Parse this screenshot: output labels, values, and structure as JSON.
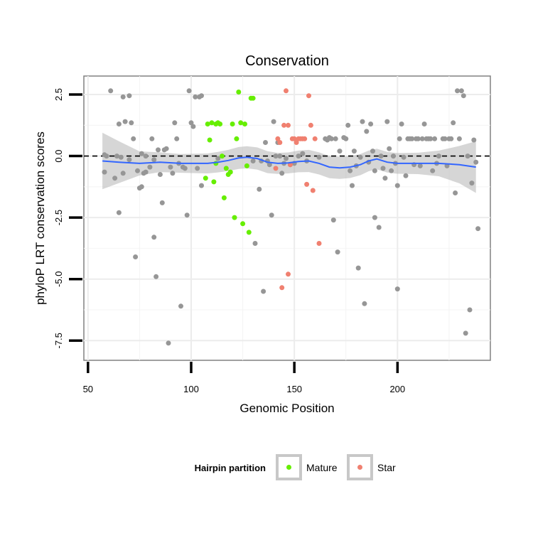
{
  "chart_data": {
    "type": "scatter",
    "title": "Conservation",
    "xlabel": "Genomic Position",
    "ylabel": "phyloP LRT conservation scores",
    "xlim": [
      48,
      245
    ],
    "ylim": [
      -8.3,
      3.25
    ],
    "x_ticks": [
      50,
      100,
      150,
      200
    ],
    "y_ticks": [
      2.5,
      0.0,
      -2.5,
      -5.0,
      -7.5
    ],
    "x_tick_labels": [
      "50",
      "100",
      "150",
      "200"
    ],
    "y_tick_labels": [
      "2.5",
      "0.0",
      "-2.5",
      "-5.0",
      "-7.5"
    ],
    "grid": true,
    "reference_line": {
      "y": 0,
      "style": "dashed",
      "color": "#000000"
    },
    "legend": {
      "title": "Hairpin partition",
      "placement": "bottom",
      "entries": [
        {
          "label": "Mature",
          "color": "#66ee00"
        },
        {
          "label": "Star",
          "color": "#f08070"
        }
      ]
    },
    "colors": {
      "other": "#969696",
      "mature": "#66ee00",
      "star": "#f08070",
      "smooth": "#3366ff",
      "band": "#b4b4b4"
    },
    "series": [
      {
        "name": "Other",
        "points": [
          [
            58,
            0.05
          ],
          [
            59,
            0.0
          ],
          [
            58,
            -0.65
          ],
          [
            61,
            2.65
          ],
          [
            63,
            -0.9
          ],
          [
            64,
            0.0
          ],
          [
            65,
            1.3
          ],
          [
            65,
            -2.3
          ],
          [
            66,
            -0.05
          ],
          [
            67,
            2.4
          ],
          [
            67,
            -0.7
          ],
          [
            68,
            1.4
          ],
          [
            70,
            2.45
          ],
          [
            70,
            -0.15
          ],
          [
            71,
            1.35
          ],
          [
            72,
            0.7
          ],
          [
            73,
            -4.1
          ],
          [
            74,
            -0.6
          ],
          [
            75,
            -1.3
          ],
          [
            76,
            -1.25
          ],
          [
            76,
            0.1
          ],
          [
            77,
            -0.7
          ],
          [
            78,
            -0.65
          ],
          [
            78,
            0.0
          ],
          [
            80,
            -0.45
          ],
          [
            81,
            0.7
          ],
          [
            82,
            -0.15
          ],
          [
            82,
            -3.3
          ],
          [
            83,
            -4.9
          ],
          [
            84,
            0.25
          ],
          [
            85,
            -0.75
          ],
          [
            86,
            -1.9
          ],
          [
            87,
            0.25
          ],
          [
            88,
            0.3
          ],
          [
            89,
            -7.6
          ],
          [
            90,
            -0.45
          ],
          [
            91,
            -0.7
          ],
          [
            92,
            1.35
          ],
          [
            93,
            0.7
          ],
          [
            94,
            -0.3
          ],
          [
            95,
            -6.1
          ],
          [
            96,
            -0.45
          ],
          [
            97,
            -0.5
          ],
          [
            98,
            -2.4
          ],
          [
            99,
            2.65
          ],
          [
            100,
            1.35
          ],
          [
            101,
            1.2
          ],
          [
            102,
            2.4
          ],
          [
            103,
            -0.5
          ],
          [
            104,
            2.4
          ],
          [
            105,
            2.45
          ],
          [
            105,
            -1.2
          ],
          [
            113,
            -0.1
          ],
          [
            130,
            -0.2
          ],
          [
            131,
            -3.55
          ],
          [
            133,
            -1.35
          ],
          [
            134,
            -0.2
          ],
          [
            135,
            -5.5
          ],
          [
            136,
            0.55
          ],
          [
            137,
            -0.2
          ],
          [
            138,
            -0.35
          ],
          [
            139,
            -2.4
          ],
          [
            140,
            1.4
          ],
          [
            141,
            0.0
          ],
          [
            142,
            0.55
          ],
          [
            143,
            0.0
          ],
          [
            144,
            -0.7
          ],
          [
            145,
            -0.3
          ],
          [
            146,
            -0.1
          ],
          [
            148,
            -0.35
          ],
          [
            150,
            -0.3
          ],
          [
            152,
            0.0
          ],
          [
            154,
            0.1
          ],
          [
            156,
            -0.2
          ],
          [
            162,
            -0.05
          ],
          [
            165,
            0.7
          ],
          [
            166,
            0.65
          ],
          [
            167,
            0.75
          ],
          [
            168,
            0.7
          ],
          [
            169,
            -2.6
          ],
          [
            170,
            0.7
          ],
          [
            171,
            -3.9
          ],
          [
            172,
            0.2
          ],
          [
            174,
            0.75
          ],
          [
            175,
            0.7
          ],
          [
            176,
            1.25
          ],
          [
            177,
            -0.6
          ],
          [
            178,
            -1.2
          ],
          [
            179,
            0.2
          ],
          [
            180,
            -0.4
          ],
          [
            181,
            -4.55
          ],
          [
            182,
            -0.05
          ],
          [
            183,
            1.4
          ],
          [
            184,
            -6.0
          ],
          [
            185,
            1.0
          ],
          [
            186,
            -0.25
          ],
          [
            187,
            1.3
          ],
          [
            188,
            0.2
          ],
          [
            189,
            -0.6
          ],
          [
            189,
            -2.5
          ],
          [
            191,
            -2.9
          ],
          [
            192,
            0.0
          ],
          [
            193,
            -0.5
          ],
          [
            194,
            -0.9
          ],
          [
            195,
            1.4
          ],
          [
            196,
            0.3
          ],
          [
            197,
            -0.6
          ],
          [
            198,
            0.0
          ],
          [
            199,
            -0.3
          ],
          [
            200,
            -5.4
          ],
          [
            200,
            -1.2
          ],
          [
            201,
            0.7
          ],
          [
            202,
            1.3
          ],
          [
            203,
            -0.05
          ],
          [
            204,
            -0.8
          ],
          [
            205,
            0.7
          ],
          [
            206,
            0.7
          ],
          [
            207,
            0.7
          ],
          [
            208,
            -0.35
          ],
          [
            209,
            0.7
          ],
          [
            210,
            0.7
          ],
          [
            211,
            -0.4
          ],
          [
            212,
            0.7
          ],
          [
            213,
            1.3
          ],
          [
            214,
            0.7
          ],
          [
            215,
            0.7
          ],
          [
            216,
            0.7
          ],
          [
            217,
            -0.6
          ],
          [
            218,
            0.7
          ],
          [
            219,
            -0.3
          ],
          [
            220,
            0.0
          ],
          [
            222,
            0.7
          ],
          [
            223,
            0.7
          ],
          [
            224,
            -0.4
          ],
          [
            225,
            0.7
          ],
          [
            226,
            0.7
          ],
          [
            227,
            1.35
          ],
          [
            228,
            -1.5
          ],
          [
            229,
            2.65
          ],
          [
            230,
            0.7
          ],
          [
            231,
            2.65
          ],
          [
            232,
            2.45
          ],
          [
            233,
            -7.2
          ],
          [
            234,
            0.0
          ],
          [
            235,
            -6.25
          ],
          [
            236,
            -1.1
          ],
          [
            237,
            0.65
          ],
          [
            238,
            -0.25
          ],
          [
            239,
            -2.95
          ]
        ]
      },
      {
        "name": "Mature",
        "points": [
          [
            107,
            -0.9
          ],
          [
            109,
            0.65
          ],
          [
            108,
            1.3
          ],
          [
            110,
            1.35
          ],
          [
            111,
            -1.05
          ],
          [
            112,
            1.3
          ],
          [
            112,
            -0.3
          ],
          [
            113,
            1.35
          ],
          [
            114,
            1.3
          ],
          [
            115,
            0.0
          ],
          [
            116,
            -1.7
          ],
          [
            117,
            -0.5
          ],
          [
            118,
            -0.75
          ],
          [
            119,
            -0.65
          ],
          [
            120,
            1.3
          ],
          [
            121,
            -2.5
          ],
          [
            122,
            0.7
          ],
          [
            123,
            2.6
          ],
          [
            124,
            1.35
          ],
          [
            125,
            -2.75
          ],
          [
            126,
            1.3
          ],
          [
            127,
            -0.4
          ],
          [
            128,
            -3.1
          ],
          [
            129,
            2.35
          ],
          [
            130,
            2.35
          ]
        ]
      },
      {
        "name": "Star",
        "points": [
          [
            141,
            -0.5
          ],
          [
            142,
            0.7
          ],
          [
            143,
            0.55
          ],
          [
            145,
            1.25
          ],
          [
            146,
            2.65
          ],
          [
            147,
            -4.8
          ],
          [
            147,
            1.25
          ],
          [
            144,
            -5.35
          ],
          [
            148,
            -0.35
          ],
          [
            149,
            0.7
          ],
          [
            150,
            0.7
          ],
          [
            151,
            0.55
          ],
          [
            152,
            0.7
          ],
          [
            153,
            0.7
          ],
          [
            154,
            0.7
          ],
          [
            155,
            0.7
          ],
          [
            156,
            -1.15
          ],
          [
            157,
            2.45
          ],
          [
            158,
            1.25
          ],
          [
            159,
            -1.4
          ],
          [
            160,
            0.7
          ],
          [
            162,
            -3.55
          ]
        ]
      }
    ],
    "smooth_line": [
      [
        57,
        -0.2
      ],
      [
        65,
        -0.25
      ],
      [
        75,
        -0.3
      ],
      [
        85,
        -0.25
      ],
      [
        95,
        -0.3
      ],
      [
        102,
        -0.3
      ],
      [
        108,
        -0.3
      ],
      [
        113,
        -0.25
      ],
      [
        118,
        -0.18
      ],
      [
        123,
        -0.08
      ],
      [
        127,
        -0.05
      ],
      [
        132,
        -0.1
      ],
      [
        137,
        -0.25
      ],
      [
        142,
        -0.3
      ],
      [
        147,
        -0.28
      ],
      [
        152,
        -0.22
      ],
      [
        157,
        -0.2
      ],
      [
        162,
        -0.3
      ],
      [
        167,
        -0.45
      ],
      [
        172,
        -0.48
      ],
      [
        177,
        -0.45
      ],
      [
        182,
        -0.35
      ],
      [
        186,
        -0.2
      ],
      [
        190,
        -0.12
      ],
      [
        195,
        -0.25
      ],
      [
        200,
        -0.3
      ],
      [
        210,
        -0.3
      ],
      [
        220,
        -0.3
      ],
      [
        230,
        -0.35
      ],
      [
        238,
        -0.45
      ]
    ],
    "smooth_band_halfwidth": [
      [
        57,
        1.15
      ],
      [
        62,
        1.0
      ],
      [
        67,
        0.75
      ],
      [
        72,
        0.55
      ],
      [
        77,
        0.45
      ],
      [
        85,
        0.4
      ],
      [
        95,
        0.38
      ],
      [
        105,
        0.4
      ],
      [
        115,
        0.42
      ],
      [
        125,
        0.45
      ],
      [
        135,
        0.45
      ],
      [
        145,
        0.42
      ],
      [
        155,
        0.45
      ],
      [
        165,
        0.45
      ],
      [
        175,
        0.45
      ],
      [
        185,
        0.42
      ],
      [
        195,
        0.42
      ],
      [
        205,
        0.42
      ],
      [
        215,
        0.45
      ],
      [
        222,
        0.55
      ],
      [
        228,
        0.7
      ],
      [
        233,
        0.85
      ],
      [
        238,
        1.05
      ]
    ]
  }
}
